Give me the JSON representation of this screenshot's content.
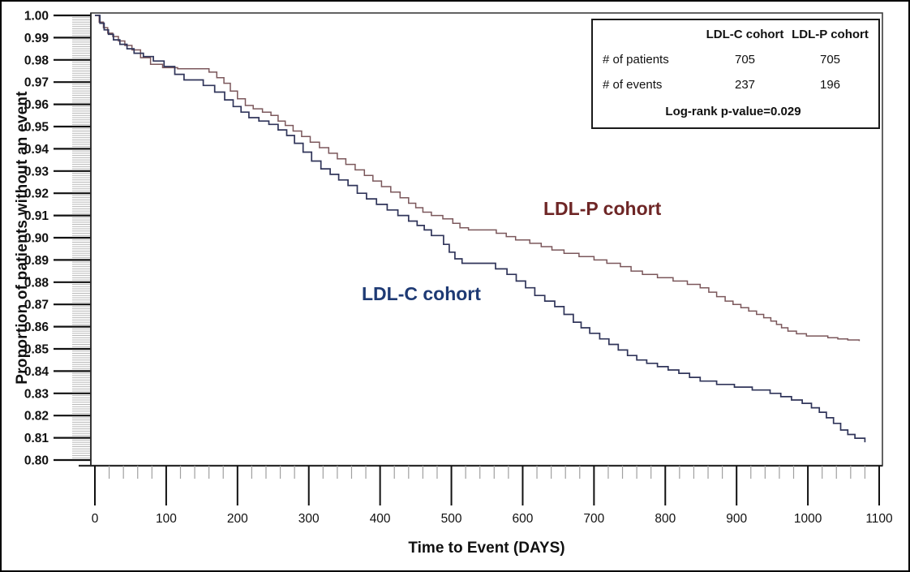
{
  "chart_data": {
    "type": "line",
    "subtype": "kaplan-meier-step",
    "title": "",
    "xlabel": "Time to Event (DAYS)",
    "ylabel": "Proportion of patients without an event",
    "xlim": [
      0,
      1100
    ],
    "ylim": [
      0.8,
      1.0
    ],
    "grid": false,
    "x_tick_labels": [
      "0",
      "100",
      "200",
      "300",
      "400",
      "500",
      "600",
      "700",
      "800",
      "900",
      "1000",
      "1100"
    ],
    "x_minor_step": 20,
    "y_tick_labels": [
      "1.00",
      "0.99",
      "0.98",
      "0.97",
      "0.96",
      "0.95",
      "0.94",
      "0.93",
      "0.92",
      "0.91",
      "0.90",
      "0.89",
      "0.88",
      "0.87",
      "0.86",
      "0.85",
      "0.84",
      "0.83",
      "0.82",
      "0.81",
      "0.80"
    ],
    "y_minor_per_major": 9,
    "series": [
      {
        "name": "LDL-C cohort",
        "color": "#30355a",
        "label_color": "#1e3a74",
        "points": [
          [
            0,
            1.0
          ],
          [
            7,
            0.9965
          ],
          [
            13,
            0.9935
          ],
          [
            19,
            0.9915
          ],
          [
            26,
            0.989
          ],
          [
            35,
            0.987
          ],
          [
            45,
            0.985
          ],
          [
            55,
            0.983
          ],
          [
            68,
            0.9815
          ],
          [
            82,
            0.9795
          ],
          [
            97,
            0.977
          ],
          [
            112,
            0.9735
          ],
          [
            125,
            0.971
          ],
          [
            152,
            0.9685
          ],
          [
            168,
            0.9655
          ],
          [
            182,
            0.962
          ],
          [
            194,
            0.959
          ],
          [
            205,
            0.9565
          ],
          [
            216,
            0.954
          ],
          [
            230,
            0.9525
          ],
          [
            244,
            0.951
          ],
          [
            257,
            0.9485
          ],
          [
            269,
            0.946
          ],
          [
            280,
            0.9425
          ],
          [
            292,
            0.9385
          ],
          [
            304,
            0.9345
          ],
          [
            317,
            0.931
          ],
          [
            330,
            0.9285
          ],
          [
            342,
            0.926
          ],
          [
            355,
            0.9235
          ],
          [
            368,
            0.92
          ],
          [
            381,
            0.9175
          ],
          [
            395,
            0.915
          ],
          [
            410,
            0.9125
          ],
          [
            425,
            0.91
          ],
          [
            440,
            0.9075
          ],
          [
            452,
            0.9055
          ],
          [
            462,
            0.9035
          ],
          [
            472,
            0.901
          ],
          [
            489,
            0.897
          ],
          [
            497,
            0.8935
          ],
          [
            505,
            0.8905
          ],
          [
            515,
            0.8885
          ],
          [
            562,
            0.886
          ],
          [
            578,
            0.8835
          ],
          [
            591,
            0.8805
          ],
          [
            604,
            0.8775
          ],
          [
            617,
            0.874
          ],
          [
            631,
            0.8715
          ],
          [
            645,
            0.869
          ],
          [
            658,
            0.8655
          ],
          [
            671,
            0.862
          ],
          [
            682,
            0.8595
          ],
          [
            694,
            0.857
          ],
          [
            708,
            0.8545
          ],
          [
            721,
            0.852
          ],
          [
            734,
            0.8495
          ],
          [
            747,
            0.847
          ],
          [
            760,
            0.845
          ],
          [
            774,
            0.8435
          ],
          [
            789,
            0.842
          ],
          [
            804,
            0.8405
          ],
          [
            819,
            0.839
          ],
          [
            834,
            0.8372
          ],
          [
            849,
            0.8355
          ],
          [
            872,
            0.834
          ],
          [
            897,
            0.8328
          ],
          [
            922,
            0.8315
          ],
          [
            947,
            0.83
          ],
          [
            962,
            0.8285
          ],
          [
            977,
            0.827
          ],
          [
            992,
            0.8255
          ],
          [
            1005,
            0.8235
          ],
          [
            1016,
            0.8215
          ],
          [
            1026,
            0.819
          ],
          [
            1036,
            0.8165
          ],
          [
            1046,
            0.8135
          ],
          [
            1056,
            0.8115
          ],
          [
            1066,
            0.8098
          ],
          [
            1080,
            0.808
          ]
        ]
      },
      {
        "name": "LDL-P cohort",
        "color": "#7b575b",
        "label_color": "#6e2626",
        "points": [
          [
            0,
            1.0
          ],
          [
            6,
            0.997
          ],
          [
            12,
            0.9945
          ],
          [
            18,
            0.992
          ],
          [
            25,
            0.9905
          ],
          [
            33,
            0.9885
          ],
          [
            42,
            0.9865
          ],
          [
            52,
            0.9845
          ],
          [
            64,
            0.981
          ],
          [
            78,
            0.978
          ],
          [
            95,
            0.9765
          ],
          [
            116,
            0.976
          ],
          [
            160,
            0.9745
          ],
          [
            171,
            0.972
          ],
          [
            181,
            0.9695
          ],
          [
            190,
            0.966
          ],
          [
            200,
            0.9625
          ],
          [
            211,
            0.9595
          ],
          [
            222,
            0.958
          ],
          [
            235,
            0.9565
          ],
          [
            247,
            0.955
          ],
          [
            257,
            0.9525
          ],
          [
            267,
            0.9505
          ],
          [
            278,
            0.948
          ],
          [
            290,
            0.9455
          ],
          [
            302,
            0.943
          ],
          [
            315,
            0.9405
          ],
          [
            328,
            0.938
          ],
          [
            340,
            0.9355
          ],
          [
            352,
            0.933
          ],
          [
            365,
            0.9305
          ],
          [
            378,
            0.928
          ],
          [
            390,
            0.9255
          ],
          [
            402,
            0.923
          ],
          [
            415,
            0.9205
          ],
          [
            428,
            0.918
          ],
          [
            440,
            0.9155
          ],
          [
            450,
            0.9135
          ],
          [
            460,
            0.9115
          ],
          [
            472,
            0.91
          ],
          [
            488,
            0.9085
          ],
          [
            502,
            0.9065
          ],
          [
            512,
            0.9045
          ],
          [
            524,
            0.9035
          ],
          [
            563,
            0.902
          ],
          [
            577,
            0.9005
          ],
          [
            590,
            0.899
          ],
          [
            610,
            0.8975
          ],
          [
            626,
            0.896
          ],
          [
            641,
            0.8945
          ],
          [
            658,
            0.893
          ],
          [
            679,
            0.8915
          ],
          [
            700,
            0.89
          ],
          [
            718,
            0.8885
          ],
          [
            737,
            0.887
          ],
          [
            752,
            0.885
          ],
          [
            768,
            0.8835
          ],
          [
            789,
            0.882
          ],
          [
            811,
            0.8805
          ],
          [
            831,
            0.879
          ],
          [
            849,
            0.8775
          ],
          [
            861,
            0.8755
          ],
          [
            872,
            0.8735
          ],
          [
            884,
            0.8715
          ],
          [
            895,
            0.87
          ],
          [
            906,
            0.8685
          ],
          [
            917,
            0.867
          ],
          [
            928,
            0.8655
          ],
          [
            938,
            0.864
          ],
          [
            948,
            0.8625
          ],
          [
            956,
            0.861
          ],
          [
            963,
            0.8595
          ],
          [
            972,
            0.858
          ],
          [
            984,
            0.8568
          ],
          [
            998,
            0.8558
          ],
          [
            1028,
            0.855
          ],
          [
            1042,
            0.8545
          ],
          [
            1056,
            0.854
          ],
          [
            1072,
            0.8535
          ]
        ]
      }
    ],
    "stats_box": {
      "col_headers": [
        "LDL-C cohort",
        "LDL-P cohort"
      ],
      "rows": [
        {
          "label": "# of patients",
          "values": [
            "705",
            "705"
          ]
        },
        {
          "label": "# of events",
          "values": [
            "237",
            "196"
          ]
        }
      ],
      "footer": "Log-rank p-value=0.029"
    }
  }
}
